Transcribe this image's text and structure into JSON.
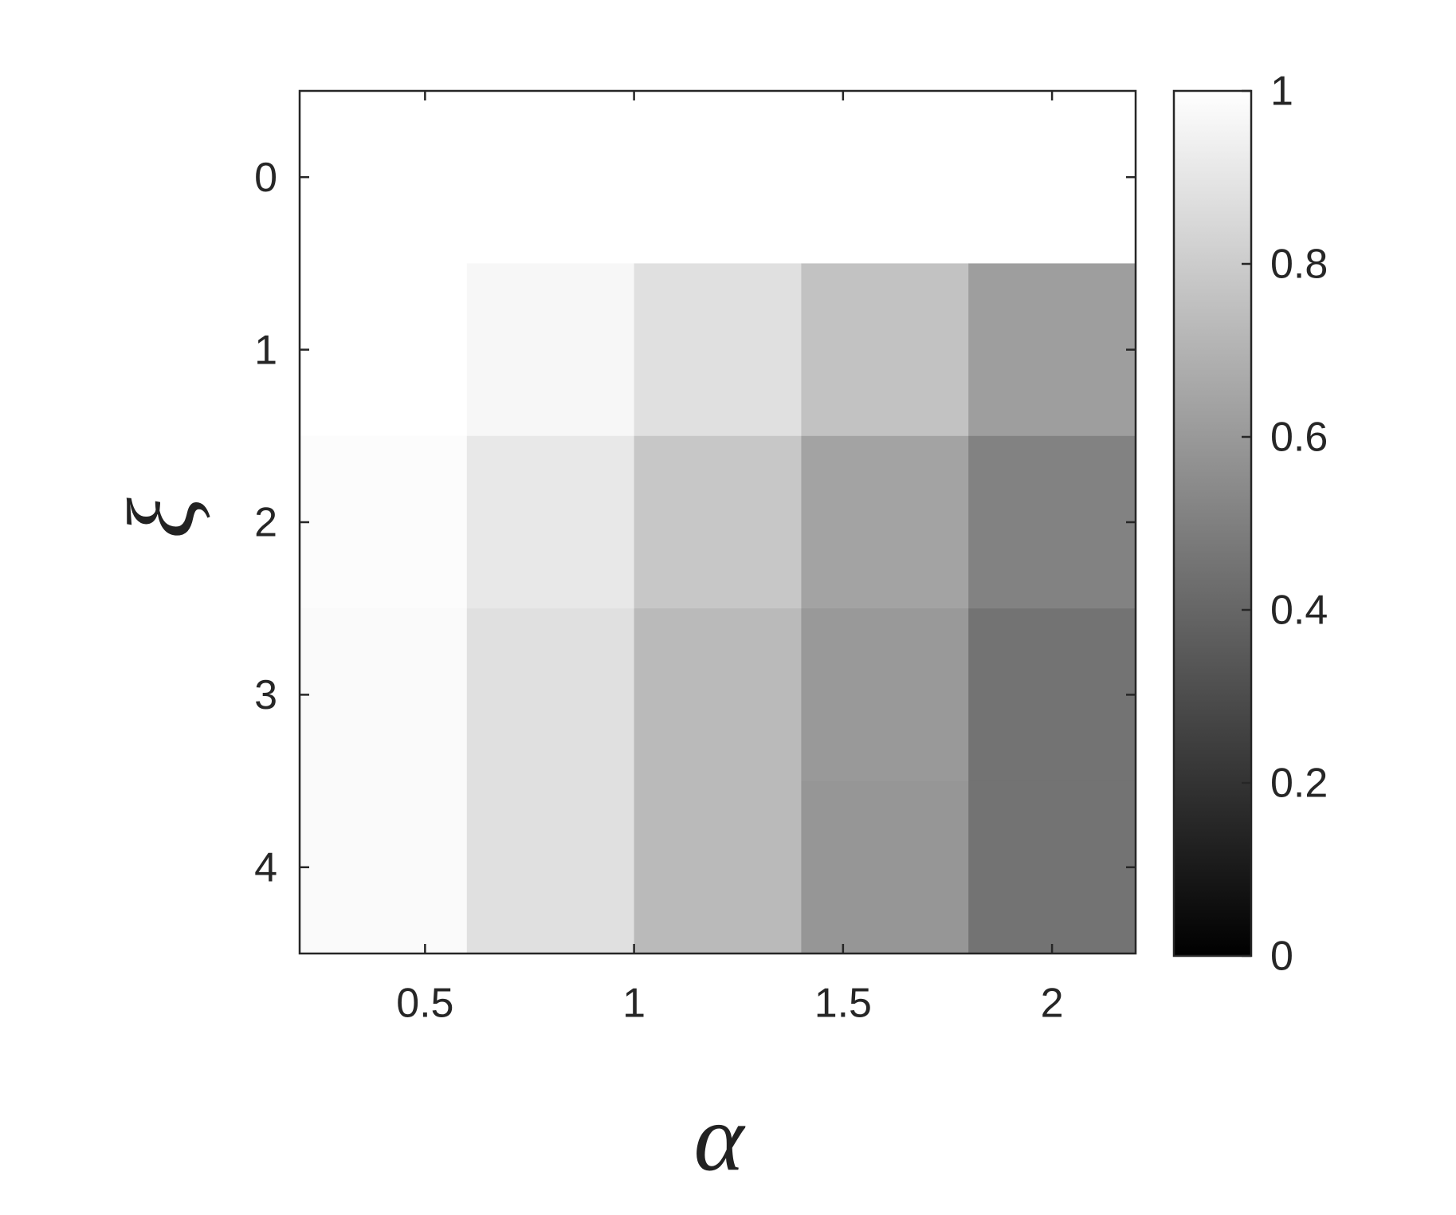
{
  "chart_data": {
    "type": "heatmap",
    "xlabel": "α",
    "ylabel": "ξ",
    "x": [
      0.4,
      0.8,
      1.2,
      1.6,
      2.0
    ],
    "y": [
      0,
      1,
      2,
      3,
      4
    ],
    "z": [
      [
        1,
        1,
        1,
        1,
        1
      ],
      [
        1,
        0.97,
        0.88,
        0.76,
        0.62
      ],
      [
        0.99,
        0.91,
        0.78,
        0.64,
        0.51
      ],
      [
        0.98,
        0.88,
        0.73,
        0.6,
        0.45
      ],
      [
        0.98,
        0.88,
        0.73,
        0.59,
        0.45
      ]
    ],
    "xlim": [
      0.2,
      2.2
    ],
    "xticks": [
      0.5,
      1,
      1.5,
      2
    ],
    "ylim": [
      -0.5,
      4.5
    ],
    "yticks": [
      0,
      1,
      2,
      3,
      4
    ],
    "y_reversed": true,
    "colormap": "gray",
    "clim": [
      0,
      1
    ],
    "cticks": [
      0,
      0.2,
      0.4,
      0.6,
      0.8,
      1
    ],
    "grid": false
  }
}
